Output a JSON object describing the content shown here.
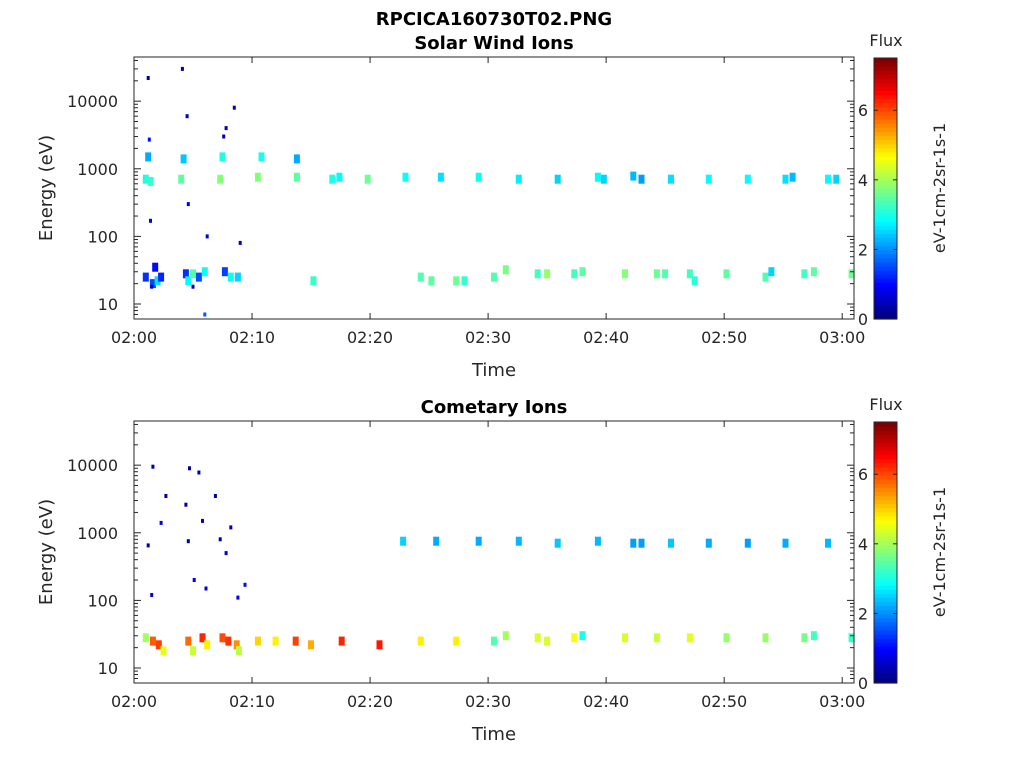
{
  "figure_title": "RPCICA160730T02.PNG",
  "chart_data": [
    {
      "type": "heatmap",
      "title": "Solar Wind Ions",
      "xlabel": "Time",
      "ylabel": "Energy (eV)",
      "y_scale": "log",
      "xlim": [
        "02:00",
        "03:01"
      ],
      "ylim": [
        6,
        45000
      ],
      "x_ticks": [
        "02:00",
        "02:10",
        "02:20",
        "02:30",
        "02:40",
        "02:50",
        "03:00"
      ],
      "y_ticks": [
        "10",
        "100",
        "1000",
        "10000"
      ],
      "colorbar": {
        "title": "Flux",
        "label": "eV-1cm-2sr-1s-1",
        "range": [
          0,
          7.5
        ],
        "ticks": [
          "0",
          "2",
          "4",
          "6"
        ],
        "colormap": "jet"
      },
      "cells": [
        {
          "t": 1.0,
          "e": 700,
          "v": 3.0
        },
        {
          "t": 1.0,
          "e": 25,
          "v": 1.3
        },
        {
          "t": 1.2,
          "e": 1500,
          "v": 2.2
        },
        {
          "t": 1.4,
          "e": 650,
          "v": 3.2
        },
        {
          "t": 1.6,
          "e": 20,
          "v": 1.5
        },
        {
          "t": 1.8,
          "e": 35,
          "v": 1.0
        },
        {
          "t": 2.0,
          "e": 22,
          "v": 2.6
        },
        {
          "t": 2.3,
          "e": 25,
          "v": 1.2
        },
        {
          "t": 4.0,
          "e": 700,
          "v": 3.5
        },
        {
          "t": 4.2,
          "e": 1400,
          "v": 2.4
        },
        {
          "t": 4.4,
          "e": 28,
          "v": 1.3
        },
        {
          "t": 4.6,
          "e": 22,
          "v": 2.8
        },
        {
          "t": 5.0,
          "e": 28,
          "v": 3.4
        },
        {
          "t": 5.5,
          "e": 25,
          "v": 1.5
        },
        {
          "t": 6.0,
          "e": 30,
          "v": 2.9
        },
        {
          "t": 7.3,
          "e": 700,
          "v": 3.8
        },
        {
          "t": 7.5,
          "e": 1500,
          "v": 3.0
        },
        {
          "t": 7.7,
          "e": 30,
          "v": 1.4
        },
        {
          "t": 8.2,
          "e": 25,
          "v": 2.9
        },
        {
          "t": 8.8,
          "e": 25,
          "v": 2.5
        },
        {
          "t": 10.5,
          "e": 750,
          "v": 3.8
        },
        {
          "t": 10.8,
          "e": 1500,
          "v": 3.0
        },
        {
          "t": 13.8,
          "e": 750,
          "v": 3.5
        },
        {
          "t": 13.8,
          "e": 1400,
          "v": 2.2
        },
        {
          "t": 15.2,
          "e": 22,
          "v": 3.2
        },
        {
          "t": 16.8,
          "e": 700,
          "v": 3.0
        },
        {
          "t": 17.4,
          "e": 750,
          "v": 2.8
        },
        {
          "t": 19.8,
          "e": 700,
          "v": 3.6
        },
        {
          "t": 23.0,
          "e": 750,
          "v": 2.9
        },
        {
          "t": 24.3,
          "e": 25,
          "v": 3.4
        },
        {
          "t": 25.2,
          "e": 22,
          "v": 3.5
        },
        {
          "t": 26.0,
          "e": 750,
          "v": 2.6
        },
        {
          "t": 27.3,
          "e": 22,
          "v": 3.6
        },
        {
          "t": 28.0,
          "e": 22,
          "v": 3.2
        },
        {
          "t": 29.2,
          "e": 750,
          "v": 2.9
        },
        {
          "t": 30.5,
          "e": 25,
          "v": 3.4
        },
        {
          "t": 31.5,
          "e": 32,
          "v": 3.7
        },
        {
          "t": 32.6,
          "e": 700,
          "v": 2.7
        },
        {
          "t": 34.2,
          "e": 28,
          "v": 3.3
        },
        {
          "t": 35.0,
          "e": 28,
          "v": 3.9
        },
        {
          "t": 35.9,
          "e": 700,
          "v": 2.5
        },
        {
          "t": 37.3,
          "e": 28,
          "v": 3.3
        },
        {
          "t": 38.0,
          "e": 30,
          "v": 3.5
        },
        {
          "t": 39.3,
          "e": 750,
          "v": 2.8
        },
        {
          "t": 39.8,
          "e": 700,
          "v": 2.5
        },
        {
          "t": 41.6,
          "e": 28,
          "v": 3.8
        },
        {
          "t": 42.3,
          "e": 780,
          "v": 2.3
        },
        {
          "t": 43.0,
          "e": 700,
          "v": 2.1
        },
        {
          "t": 44.3,
          "e": 28,
          "v": 3.6
        },
        {
          "t": 45.0,
          "e": 28,
          "v": 3.4
        },
        {
          "t": 45.5,
          "e": 700,
          "v": 2.6
        },
        {
          "t": 47.1,
          "e": 28,
          "v": 3.3
        },
        {
          "t": 47.5,
          "e": 22,
          "v": 3.1
        },
        {
          "t": 48.7,
          "e": 700,
          "v": 2.8
        },
        {
          "t": 50.2,
          "e": 28,
          "v": 3.5
        },
        {
          "t": 52.0,
          "e": 700,
          "v": 2.8
        },
        {
          "t": 53.5,
          "e": 25,
          "v": 3.4
        },
        {
          "t": 54.0,
          "e": 30,
          "v": 2.5
        },
        {
          "t": 55.2,
          "e": 700,
          "v": 2.6
        },
        {
          "t": 55.8,
          "e": 750,
          "v": 2.3
        },
        {
          "t": 56.8,
          "e": 28,
          "v": 3.3
        },
        {
          "t": 57.6,
          "e": 30,
          "v": 3.5
        },
        {
          "t": 58.8,
          "e": 700,
          "v": 2.8
        },
        {
          "t": 59.5,
          "e": 700,
          "v": 2.5
        },
        {
          "t": 60.8,
          "e": 28,
          "v": 3.6
        }
      ],
      "sparse_low": [
        {
          "t": 1.2,
          "e": 22000,
          "v": 0.2
        },
        {
          "t": 1.3,
          "e": 2700,
          "v": 1.0
        },
        {
          "t": 1.4,
          "e": 170,
          "v": 0.8
        },
        {
          "t": 1.5,
          "e": 18,
          "v": 0.6
        },
        {
          "t": 4.1,
          "e": 30000,
          "v": 0.3
        },
        {
          "t": 4.5,
          "e": 6000,
          "v": 0.5
        },
        {
          "t": 4.6,
          "e": 300,
          "v": 0.8
        },
        {
          "t": 5.0,
          "e": 18,
          "v": 0.4
        },
        {
          "t": 6.0,
          "e": 7,
          "v": 1.6
        },
        {
          "t": 6.2,
          "e": 100,
          "v": 0.7
        },
        {
          "t": 7.6,
          "e": 3000,
          "v": 0.4
        },
        {
          "t": 7.8,
          "e": 4000,
          "v": 0.5
        },
        {
          "t": 8.5,
          "e": 8000,
          "v": 0.5
        },
        {
          "t": 9.0,
          "e": 80,
          "v": 0.4
        }
      ]
    },
    {
      "type": "heatmap",
      "title": "Cometary Ions",
      "xlabel": "Time",
      "ylabel": "Energy (eV)",
      "y_scale": "log",
      "xlim": [
        "02:00",
        "03:01"
      ],
      "ylim": [
        6,
        45000
      ],
      "x_ticks": [
        "02:00",
        "02:10",
        "02:20",
        "02:30",
        "02:40",
        "02:50",
        "03:00"
      ],
      "y_ticks": [
        "10",
        "100",
        "1000",
        "10000"
      ],
      "colorbar": {
        "title": "Flux",
        "label": "eV-1cm-2sr-1s-1",
        "range": [
          0,
          7.5
        ],
        "ticks": [
          "0",
          "2",
          "4",
          "6"
        ],
        "colormap": "jet"
      },
      "cells": [
        {
          "t": 1.0,
          "e": 28,
          "v": 4.0
        },
        {
          "t": 1.6,
          "e": 25,
          "v": 5.9
        },
        {
          "t": 2.1,
          "e": 22,
          "v": 6.1
        },
        {
          "t": 2.5,
          "e": 18,
          "v": 4.5
        },
        {
          "t": 4.6,
          "e": 25,
          "v": 5.8
        },
        {
          "t": 5.0,
          "e": 18,
          "v": 4.3
        },
        {
          "t": 5.8,
          "e": 28,
          "v": 6.3
        },
        {
          "t": 6.2,
          "e": 22,
          "v": 4.8
        },
        {
          "t": 7.5,
          "e": 28,
          "v": 6.0
        },
        {
          "t": 8.0,
          "e": 25,
          "v": 6.2
        },
        {
          "t": 8.7,
          "e": 22,
          "v": 5.5
        },
        {
          "t": 8.9,
          "e": 18,
          "v": 4.2
        },
        {
          "t": 10.5,
          "e": 25,
          "v": 5.0
        },
        {
          "t": 12.0,
          "e": 25,
          "v": 4.8
        },
        {
          "t": 13.7,
          "e": 25,
          "v": 6.1
        },
        {
          "t": 15.0,
          "e": 22,
          "v": 5.3
        },
        {
          "t": 17.6,
          "e": 25,
          "v": 6.3
        },
        {
          "t": 20.8,
          "e": 22,
          "v": 6.4
        },
        {
          "t": 22.8,
          "e": 750,
          "v": 2.5
        },
        {
          "t": 24.3,
          "e": 25,
          "v": 4.8
        },
        {
          "t": 25.6,
          "e": 750,
          "v": 2.2
        },
        {
          "t": 27.3,
          "e": 25,
          "v": 4.8
        },
        {
          "t": 29.2,
          "e": 750,
          "v": 2.2
        },
        {
          "t": 30.5,
          "e": 25,
          "v": 3.4
        },
        {
          "t": 31.5,
          "e": 30,
          "v": 4.0
        },
        {
          "t": 32.6,
          "e": 750,
          "v": 2.3
        },
        {
          "t": 34.2,
          "e": 28,
          "v": 4.4
        },
        {
          "t": 35.0,
          "e": 25,
          "v": 4.4
        },
        {
          "t": 35.9,
          "e": 700,
          "v": 2.4
        },
        {
          "t": 37.3,
          "e": 28,
          "v": 4.6
        },
        {
          "t": 38.0,
          "e": 30,
          "v": 3.0
        },
        {
          "t": 39.3,
          "e": 750,
          "v": 2.3
        },
        {
          "t": 41.6,
          "e": 28,
          "v": 4.4
        },
        {
          "t": 42.3,
          "e": 700,
          "v": 2.1
        },
        {
          "t": 43.0,
          "e": 700,
          "v": 2.1
        },
        {
          "t": 44.3,
          "e": 28,
          "v": 4.3
        },
        {
          "t": 45.5,
          "e": 700,
          "v": 2.4
        },
        {
          "t": 47.1,
          "e": 28,
          "v": 4.5
        },
        {
          "t": 48.7,
          "e": 700,
          "v": 2.2
        },
        {
          "t": 50.2,
          "e": 28,
          "v": 3.9
        },
        {
          "t": 52.0,
          "e": 700,
          "v": 2.1
        },
        {
          "t": 53.5,
          "e": 28,
          "v": 3.9
        },
        {
          "t": 55.2,
          "e": 700,
          "v": 2.2
        },
        {
          "t": 56.8,
          "e": 28,
          "v": 3.7
        },
        {
          "t": 57.6,
          "e": 30,
          "v": 3.3
        },
        {
          "t": 58.8,
          "e": 700,
          "v": 2.3
        },
        {
          "t": 60.8,
          "e": 28,
          "v": 3.2
        }
      ],
      "sparse_low": [
        {
          "t": 1.2,
          "e": 650,
          "v": 0.2
        },
        {
          "t": 1.5,
          "e": 120,
          "v": 0.7
        },
        {
          "t": 1.6,
          "e": 9500,
          "v": 0.3
        },
        {
          "t": 2.3,
          "e": 1400,
          "v": 0.8
        },
        {
          "t": 2.7,
          "e": 3500,
          "v": 0.3
        },
        {
          "t": 4.4,
          "e": 2600,
          "v": 0.2
        },
        {
          "t": 4.6,
          "e": 750,
          "v": 0.2
        },
        {
          "t": 4.7,
          "e": 9000,
          "v": 0.3
        },
        {
          "t": 5.1,
          "e": 200,
          "v": 0.8
        },
        {
          "t": 5.5,
          "e": 7800,
          "v": 0.3
        },
        {
          "t": 5.8,
          "e": 1500,
          "v": 0.4
        },
        {
          "t": 6.1,
          "e": 150,
          "v": 0.7
        },
        {
          "t": 6.9,
          "e": 3500,
          "v": 0.2
        },
        {
          "t": 7.3,
          "e": 800,
          "v": 0.2
        },
        {
          "t": 7.8,
          "e": 500,
          "v": 0.7
        },
        {
          "t": 8.2,
          "e": 1200,
          "v": 0.4
        },
        {
          "t": 8.8,
          "e": 110,
          "v": 0.8
        },
        {
          "t": 9.4,
          "e": 170,
          "v": 1.0
        }
      ]
    }
  ]
}
